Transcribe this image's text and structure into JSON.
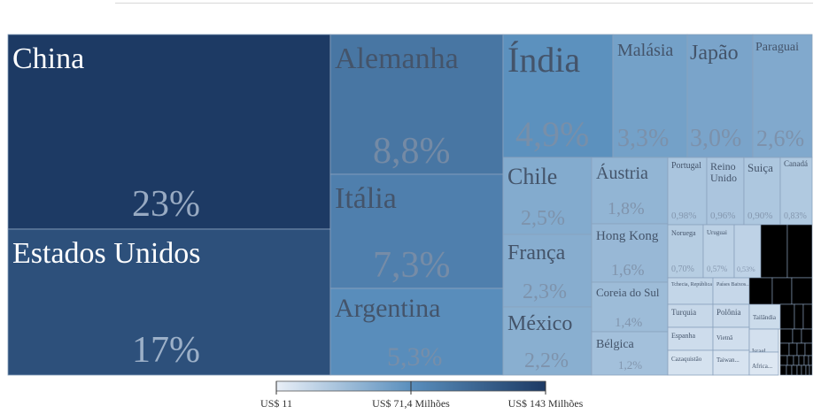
{
  "chart_data": {
    "type": "treemap",
    "colors": {
      "low": "#e9eff7",
      "mid": "#5a8fbd",
      "high": "#1d3a64",
      "light_text": "#ffffff",
      "dark_text": "#44546a",
      "border": "#8aa2bd"
    },
    "legend": {
      "min_label": "US$ 11",
      "mid_label": "US$ 71,4 Milhões",
      "max_label": "US$ 143 Milhões"
    },
    "items": [
      {
        "name": "China",
        "share_label": "23%",
        "value": 23
      },
      {
        "name": "Estados Unidos",
        "share_label": "17%",
        "value": 17
      },
      {
        "name": "Alemanha",
        "share_label": "8,8%",
        "value": 8.8
      },
      {
        "name": "Itália",
        "share_label": "7,3%",
        "value": 7.3
      },
      {
        "name": "Argentina",
        "share_label": "5,3%",
        "value": 5.3
      },
      {
        "name": "Índia",
        "share_label": "4,9%",
        "value": 4.9
      },
      {
        "name": "Malásia",
        "share_label": "3,3%",
        "value": 3.3
      },
      {
        "name": "Japão",
        "share_label": "3,0%",
        "value": 3.0
      },
      {
        "name": "Paraguai",
        "share_label": "2,6%",
        "value": 2.6
      },
      {
        "name": "Chile",
        "share_label": "2,5%",
        "value": 2.5
      },
      {
        "name": "França",
        "share_label": "2,3%",
        "value": 2.3
      },
      {
        "name": "México",
        "share_label": "2,2%",
        "value": 2.2
      },
      {
        "name": "Áustria",
        "share_label": "1,8%",
        "value": 1.8
      },
      {
        "name": "Hong Kong",
        "share_label": "1,6%",
        "value": 1.6
      },
      {
        "name": "Coreia do Sul",
        "share_label": "1,4%",
        "value": 1.4
      },
      {
        "name": "Bélgica",
        "share_label": "1,2%",
        "value": 1.2
      },
      {
        "name": "Portugal",
        "share_label": "0,98%",
        "value": 0.98
      },
      {
        "name": "Reino Unido",
        "share_label": "0,96%",
        "value": 0.96
      },
      {
        "name": "Suiça",
        "share_label": "0,90%",
        "value": 0.9
      },
      {
        "name": "Canadá",
        "share_label": "0,83%",
        "value": 0.83
      },
      {
        "name": "Noruega",
        "share_label": "0,70%",
        "value": 0.7
      },
      {
        "name": "Uruguai",
        "share_label": "0,57%",
        "value": 0.57
      },
      {
        "name": "",
        "share_label": "0,53%",
        "value": 0.53
      },
      {
        "name": "Tchecia, República",
        "share_label": "",
        "value": 0.45
      },
      {
        "name": "Países Baixos...",
        "share_label": "",
        "value": 0.42
      },
      {
        "name": "Turquia",
        "share_label": "",
        "value": 0.4
      },
      {
        "name": "Polônia",
        "share_label": "",
        "value": 0.38
      },
      {
        "name": "Tailândia",
        "share_label": "",
        "value": 0.34
      },
      {
        "name": "Espanha",
        "share_label": "",
        "value": 0.33
      },
      {
        "name": "Vietnã",
        "share_label": "",
        "value": 0.3
      },
      {
        "name": "Israel",
        "share_label": "",
        "value": 0.28
      },
      {
        "name": "Cazaquistão",
        "share_label": "",
        "value": 0.26
      },
      {
        "name": "Taiwan...",
        "share_label": "",
        "value": 0.25
      },
      {
        "name": "Africa...",
        "share_label": "",
        "value": 0.22
      }
    ]
  }
}
